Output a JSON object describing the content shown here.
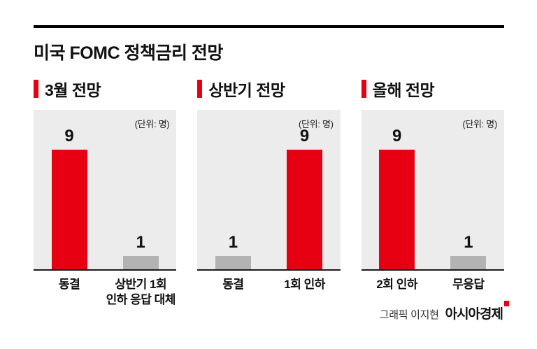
{
  "page": {
    "title": "미국 FOMC 정책금리 전망",
    "credit": "그래픽 이지현",
    "brand": "아시아경제",
    "theme": {
      "accent_red": "#e60012",
      "bar_gray": "#b3b3b3",
      "panel_bg": "#ececec"
    }
  },
  "chart_data": [
    {
      "type": "bar",
      "title": "3월 전망",
      "unit_label": "(단위: 명)",
      "categories": [
        "동결",
        "상반기 1회\n인하 응답 대체"
      ],
      "values": [
        9,
        1
      ],
      "colors": [
        "#e60012",
        "#b3b3b3"
      ],
      "ylim": [
        0,
        10
      ],
      "grid": false,
      "legend": "none"
    },
    {
      "type": "bar",
      "title": "상반기 전망",
      "unit_label": "(단위: 명)",
      "categories": [
        "동결",
        "1회 인하"
      ],
      "values": [
        1,
        9
      ],
      "colors": [
        "#b3b3b3",
        "#e60012"
      ],
      "ylim": [
        0,
        10
      ],
      "grid": false,
      "legend": "none"
    },
    {
      "type": "bar",
      "title": "올해 전망",
      "unit_label": "(단위: 명)",
      "categories": [
        "2회 인하",
        "무응답"
      ],
      "values": [
        9,
        1
      ],
      "colors": [
        "#e60012",
        "#b3b3b3"
      ],
      "ylim": [
        0,
        10
      ],
      "grid": false,
      "legend": "none"
    }
  ]
}
